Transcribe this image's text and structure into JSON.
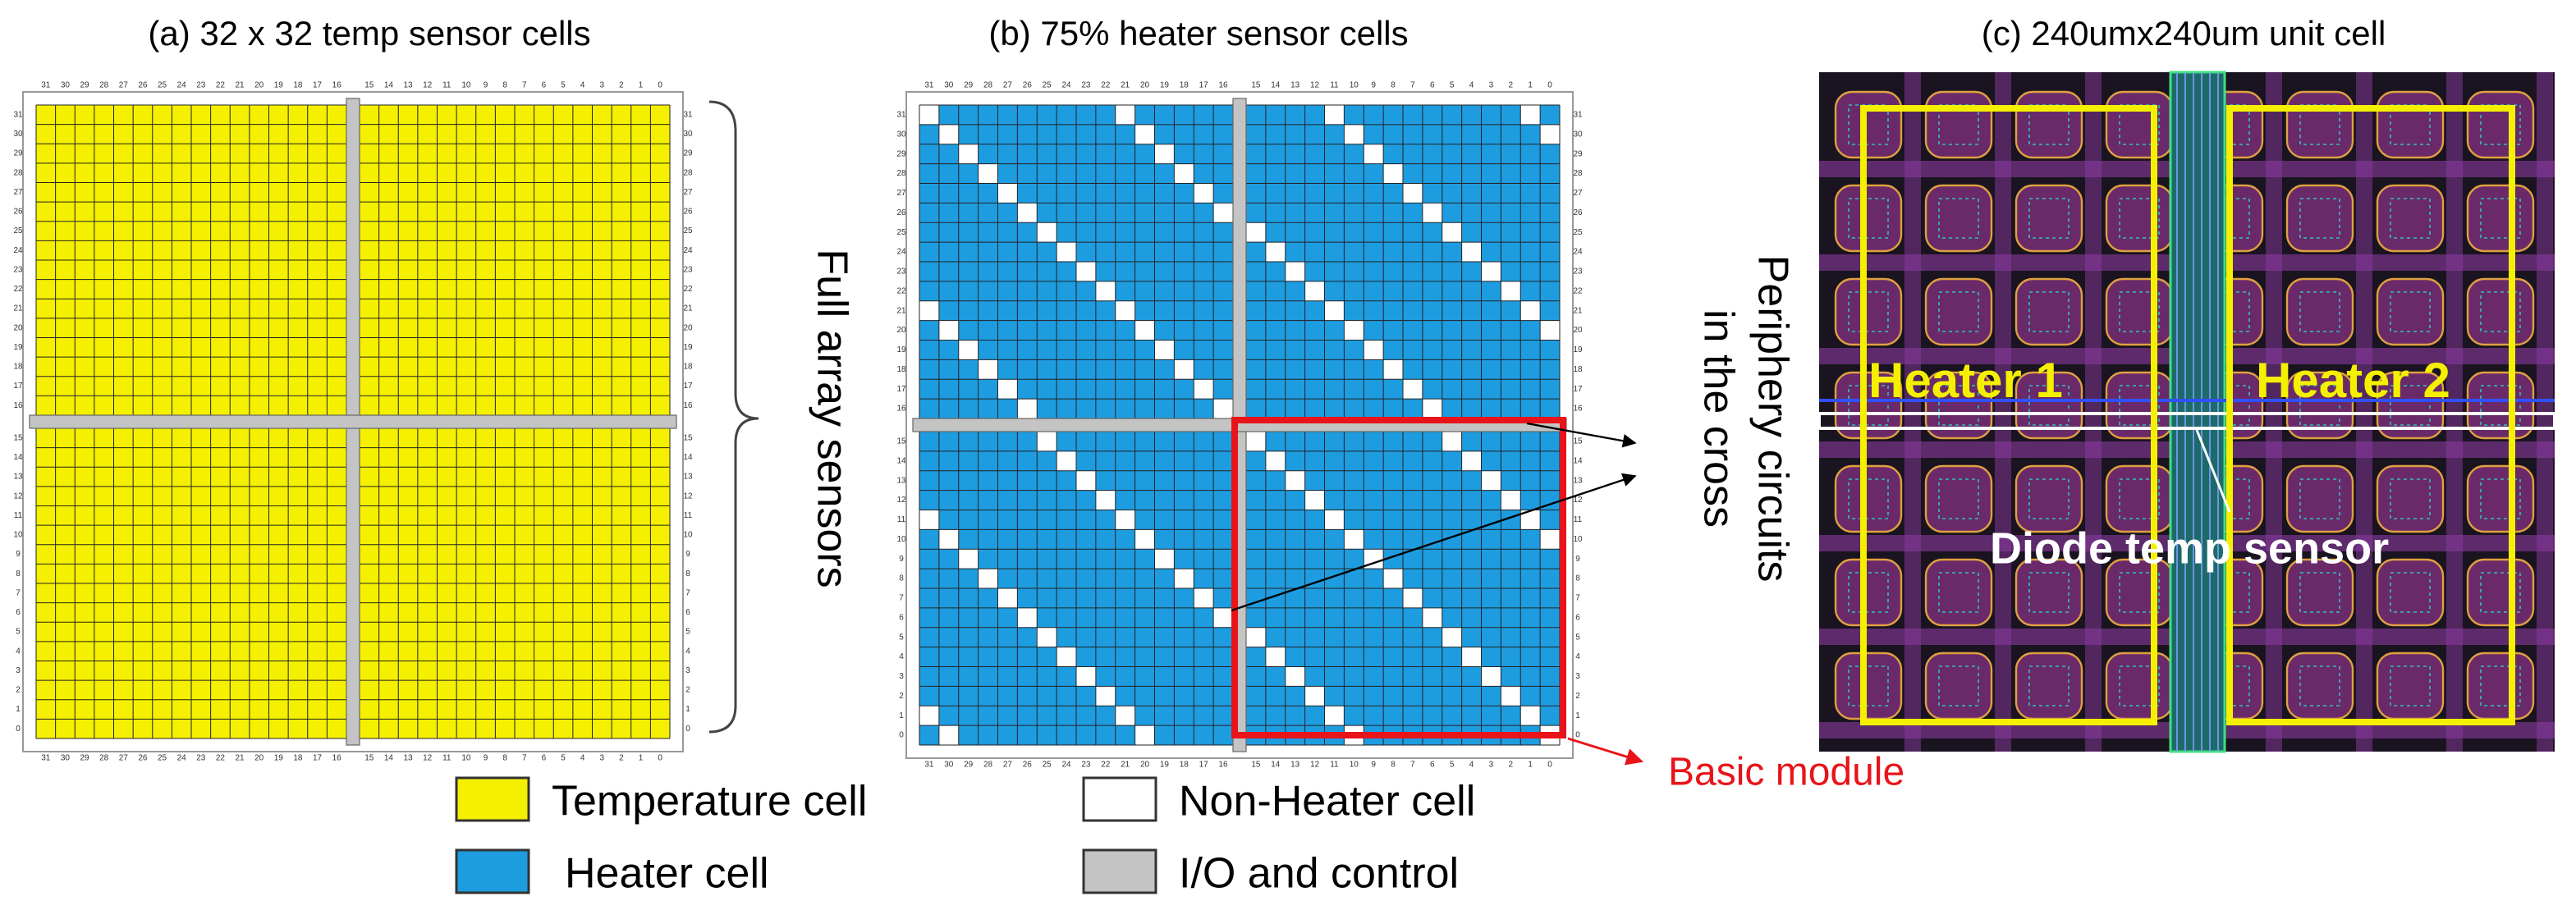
{
  "panels": [
    {
      "title": "(a) 32 x 32 temp sensor cells"
    },
    {
      "title": "(b) 75% heater sensor cells"
    },
    {
      "title": "(c) 240umx240um unit cell",
      "labels": [
        "Heater 1",
        "Heater 2",
        "Diode temp sensor"
      ]
    }
  ],
  "axis_labels": [
    31,
    30,
    29,
    28,
    27,
    26,
    25,
    24,
    23,
    22,
    21,
    20,
    19,
    18,
    17,
    16,
    15,
    14,
    13,
    12,
    11,
    10,
    9,
    8,
    7,
    6,
    5,
    4,
    3,
    2,
    1,
    0
  ],
  "annotations": {
    "full_array": "Full array sensors",
    "periphery": [
      "Periphery circuits",
      "in the cross"
    ],
    "basic_module": "Basic module"
  },
  "legend": [
    {
      "label": "Temperature cell",
      "color": "#f4f000"
    },
    {
      "label": "Heater cell",
      "color": "#1e9ce0"
    },
    {
      "label": "Non-Heater cell",
      "color": "#ffffff"
    },
    {
      "label": "I/O and control",
      "color": "#c4c4c4"
    }
  ]
}
